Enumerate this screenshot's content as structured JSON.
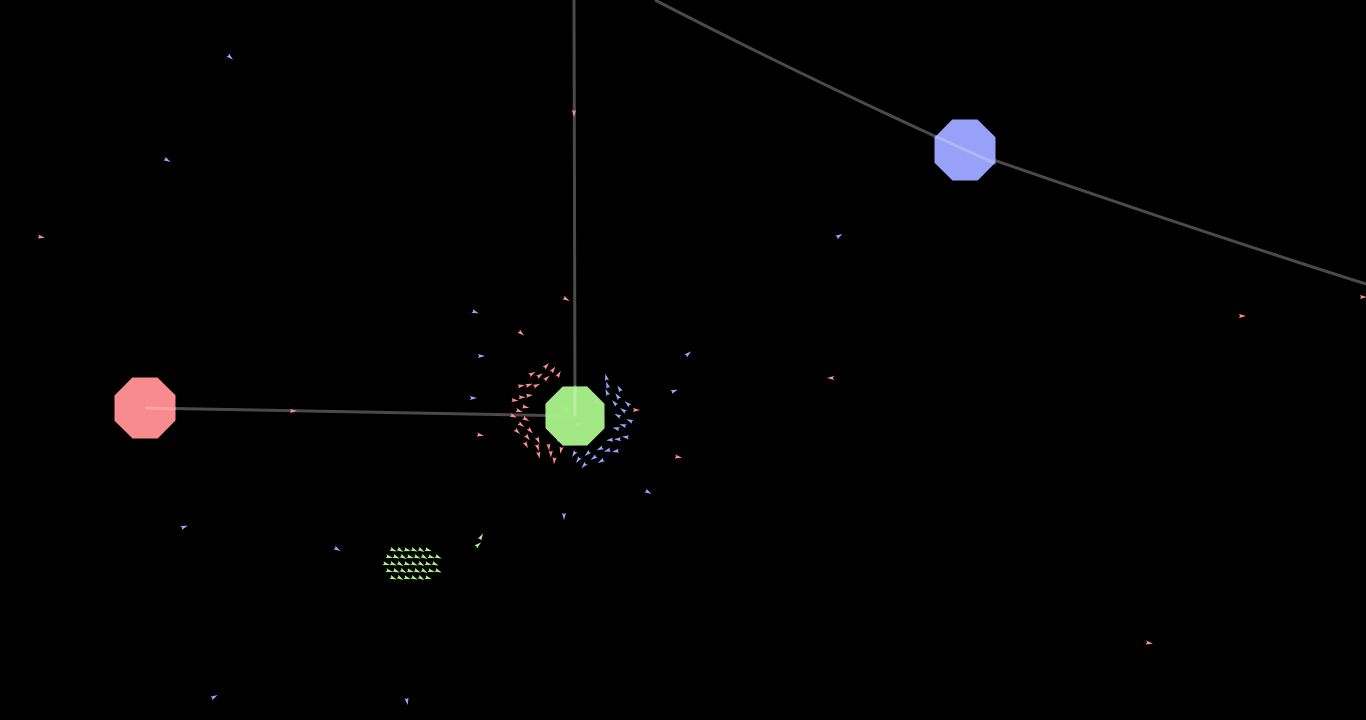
{
  "scene": {
    "background": "#000000",
    "link_color": "#4a4a4a"
  },
  "colors": {
    "red": "#ff8f92",
    "green": "#a9f08a",
    "blue": "#9ca6ff"
  },
  "planets": [
    {
      "id": "planet-green",
      "team": "green"
    },
    {
      "id": "planet-red",
      "team": "red"
    },
    {
      "id": "planet-blue",
      "team": "blue"
    }
  ]
}
